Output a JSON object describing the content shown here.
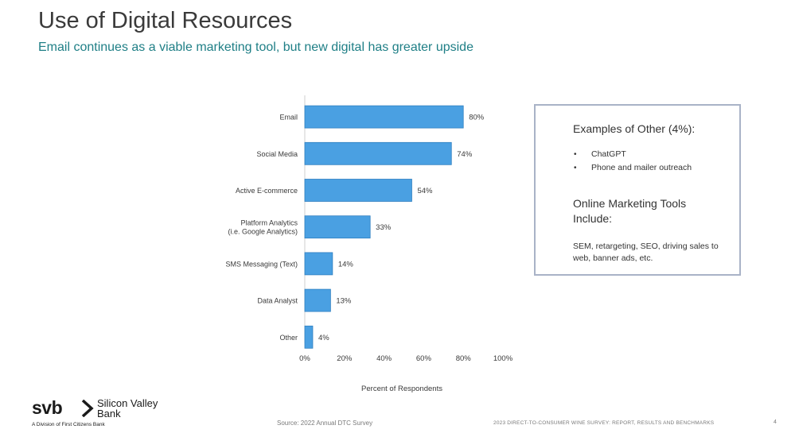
{
  "page": {
    "title": "Use of Digital Resources",
    "subtitle": "Email continues as a viable marketing tool, but new digital has greater upside"
  },
  "chart_data": {
    "type": "bar",
    "orientation": "horizontal",
    "categories": [
      "Email",
      "Social Media",
      "Active E-commerce",
      "Platform Analytics\n(i.e. Google Analytics)",
      "SMS Messaging (Text)",
      "Data Analyst",
      "Other"
    ],
    "values": [
      80,
      74,
      54,
      33,
      14,
      13,
      4
    ],
    "value_labels": [
      "80%",
      "74%",
      "54%",
      "33%",
      "14%",
      "13%",
      "4%"
    ],
    "xticks": [
      "0%",
      "20%",
      "40%",
      "60%",
      "80%",
      "100%"
    ],
    "xlim": [
      0,
      100
    ],
    "xlabel": "Percent of Respondents",
    "bar_color": "#4aa0e2",
    "bar_border": "#2f7fc0",
    "grid": "none"
  },
  "other_box": {
    "heading1": "Examples of Other (4%):",
    "bullets": [
      "ChatGPT",
      "Phone and mailer outreach"
    ],
    "heading2": "Online Marketing Tools Include:",
    "tools": "SEM, retargeting, SEO, driving sales to web, banner ads, etc."
  },
  "footer": {
    "logo_mark": "svb",
    "logo_name": "Silicon Valley Bank",
    "division": "A Division of First Citizens Bank",
    "source": "Source: 2022 Annual DTC Survey",
    "report_title": "2023 DIRECT-TO-CONSUMER WINE SURVEY: REPORT, RESULTS AND BENCHMARKS",
    "page_number": "4"
  }
}
